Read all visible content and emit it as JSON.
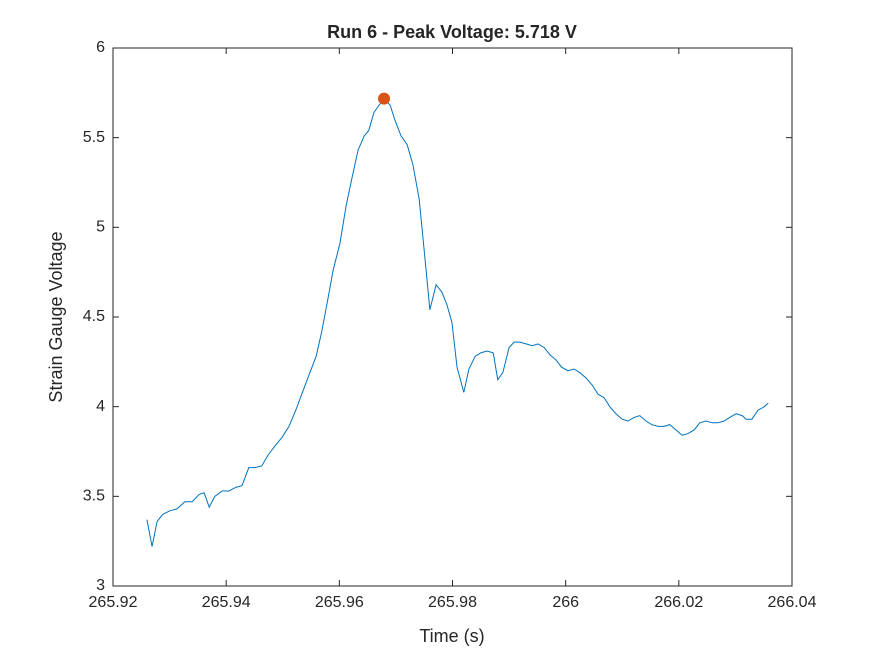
{
  "chart_data": {
    "type": "line",
    "title": "Run 6 - Peak Voltage: 5.718 V",
    "xlabel": "Time (s)",
    "ylabel": "Strain Gauge Voltage",
    "x": [
      265.926,
      265.9269,
      265.9278,
      265.9288,
      265.9301,
      265.9313,
      265.9327,
      265.934,
      265.9352,
      265.9361,
      265.937,
      265.938,
      265.9393,
      265.9405,
      265.9417,
      265.9428,
      265.944,
      265.9451,
      265.9463,
      265.9474,
      265.9486,
      265.9499,
      265.9511,
      265.9523,
      265.9536,
      265.9548,
      265.9559,
      265.9569,
      265.9578,
      265.9589,
      265.9601,
      265.9612,
      265.9622,
      265.9633,
      265.9644,
      265.9652,
      265.9661,
      265.967,
      265.9679,
      265.969,
      265.9698,
      265.9709,
      265.972,
      265.973,
      265.9741,
      265.975,
      265.976,
      265.9771,
      265.9781,
      265.979,
      265.9799,
      265.9808,
      265.982,
      265.9829,
      265.984,
      265.985,
      265.9861,
      265.9872,
      265.988,
      265.9889,
      265.99,
      265.9909,
      265.9919,
      265.993,
      265.9941,
      265.9951,
      265.9962,
      265.9972,
      265.9983,
      265.9993,
      266.0004,
      266.0015,
      266.0025,
      266.0036,
      266.0047,
      266.0057,
      266.0068,
      266.0078,
      266.0089,
      266.01,
      266.011,
      266.0121,
      266.0131,
      266.0142,
      266.0152,
      266.0163,
      266.0174,
      266.0184,
      266.0195,
      266.0206,
      266.0216,
      266.0227,
      266.0237,
      266.0248,
      266.0259,
      266.0269,
      266.028,
      266.029,
      266.0301,
      266.0312,
      266.0319,
      266.0329,
      266.034,
      266.0351,
      266.0358
    ],
    "series": [
      {
        "color": "#0072bd",
        "values": [
          3.37,
          3.22,
          3.36,
          3.4,
          3.42,
          3.43,
          3.47,
          3.47,
          3.51,
          3.52,
          3.44,
          3.5,
          3.53,
          3.53,
          3.55,
          3.56,
          3.66,
          3.66,
          3.67,
          3.73,
          3.78,
          3.83,
          3.89,
          3.98,
          4.09,
          4.19,
          4.28,
          4.42,
          4.57,
          4.76,
          4.91,
          5.12,
          5.27,
          5.43,
          5.51,
          5.54,
          5.64,
          5.68,
          5.718,
          5.68,
          5.6,
          5.51,
          5.46,
          5.35,
          5.16,
          4.87,
          4.54,
          4.68,
          4.64,
          4.57,
          4.47,
          4.22,
          4.08,
          4.21,
          4.28,
          4.3,
          4.31,
          4.3,
          4.15,
          4.19,
          4.33,
          4.36,
          4.36,
          4.35,
          4.34,
          4.35,
          4.33,
          4.29,
          4.26,
          4.22,
          4.2,
          4.21,
          4.19,
          4.16,
          4.12,
          4.07,
          4.05,
          4,
          3.96,
          3.93,
          3.92,
          3.94,
          3.95,
          3.92,
          3.9,
          3.89,
          3.89,
          3.9,
          3.87,
          3.84,
          3.85,
          3.87,
          3.91,
          3.92,
          3.91,
          3.91,
          3.92,
          3.94,
          3.96,
          3.95,
          3.93,
          3.93,
          3.98,
          4,
          4.02
        ]
      }
    ],
    "peak": {
      "x": 265.9679,
      "y": 5.718,
      "color": "#d95319"
    },
    "xlim": [
      265.92,
      266.04
    ],
    "xticks": [
      265.92,
      265.94,
      265.96,
      265.98,
      266,
      266.02,
      266.04
    ],
    "ylim": [
      3,
      6
    ],
    "yticks": [
      3,
      3.5,
      4,
      4.5,
      5,
      5.5,
      6
    ]
  }
}
